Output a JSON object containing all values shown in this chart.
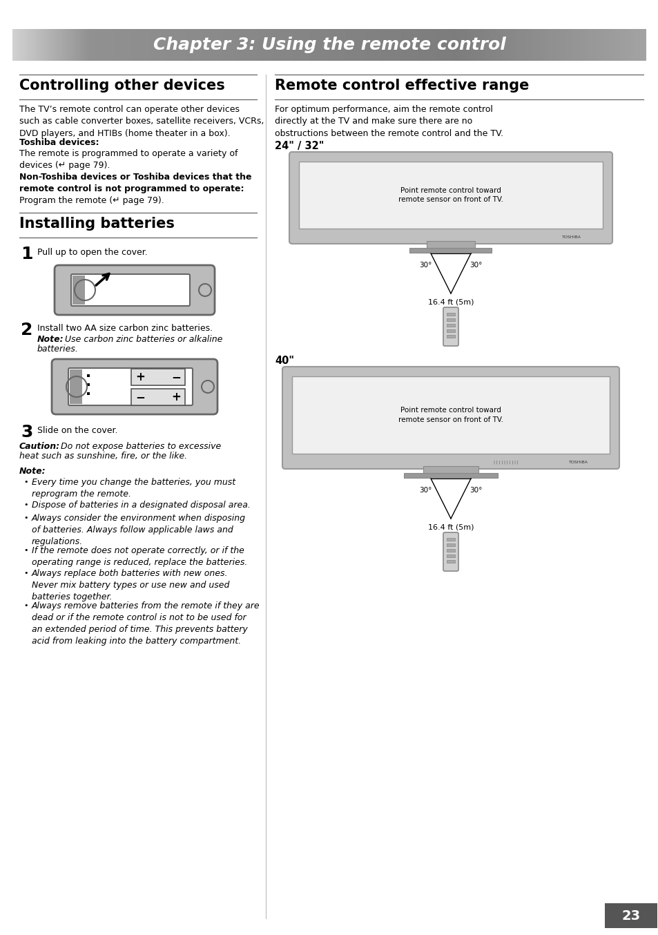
{
  "title": "Chapter 3: Using the remote control",
  "page_bg": "#ffffff",
  "page_number": "23",
  "section1_title": "Controlling other devices",
  "section2_title": "Installing batteries",
  "section3_title": "Remote control effective range",
  "section3_intro": "For optimum performance, aim the remote control\ndirectly at the TV and make sure there are no\nobstructions between the remote control and the TV.",
  "tv24_label": "24\" / 32\"",
  "tv40_label": "40\"",
  "tv_label_inside": "Point remote control toward\nremote sensor on front of TV.",
  "range_label": "16.4 ft (5m)",
  "notes": [
    "Every time you change the batteries, you must\nreprogram the remote.",
    "Dispose of batteries in a designated disposal area.",
    "Always consider the environment when disposing\nof batteries. Always follow applicable laws and\nregulations.",
    "If the remote does not operate correctly, or if the\noperating range is reduced, replace the batteries.",
    "Always replace both batteries with new ones.\nNever mix battery types or use new and used\nbatteries together.",
    "Always remove batteries from the remote if they are\ndead or if the remote control is not to be used for\nan extended period of time. This prevents battery\nacid from leaking into the battery compartment."
  ]
}
